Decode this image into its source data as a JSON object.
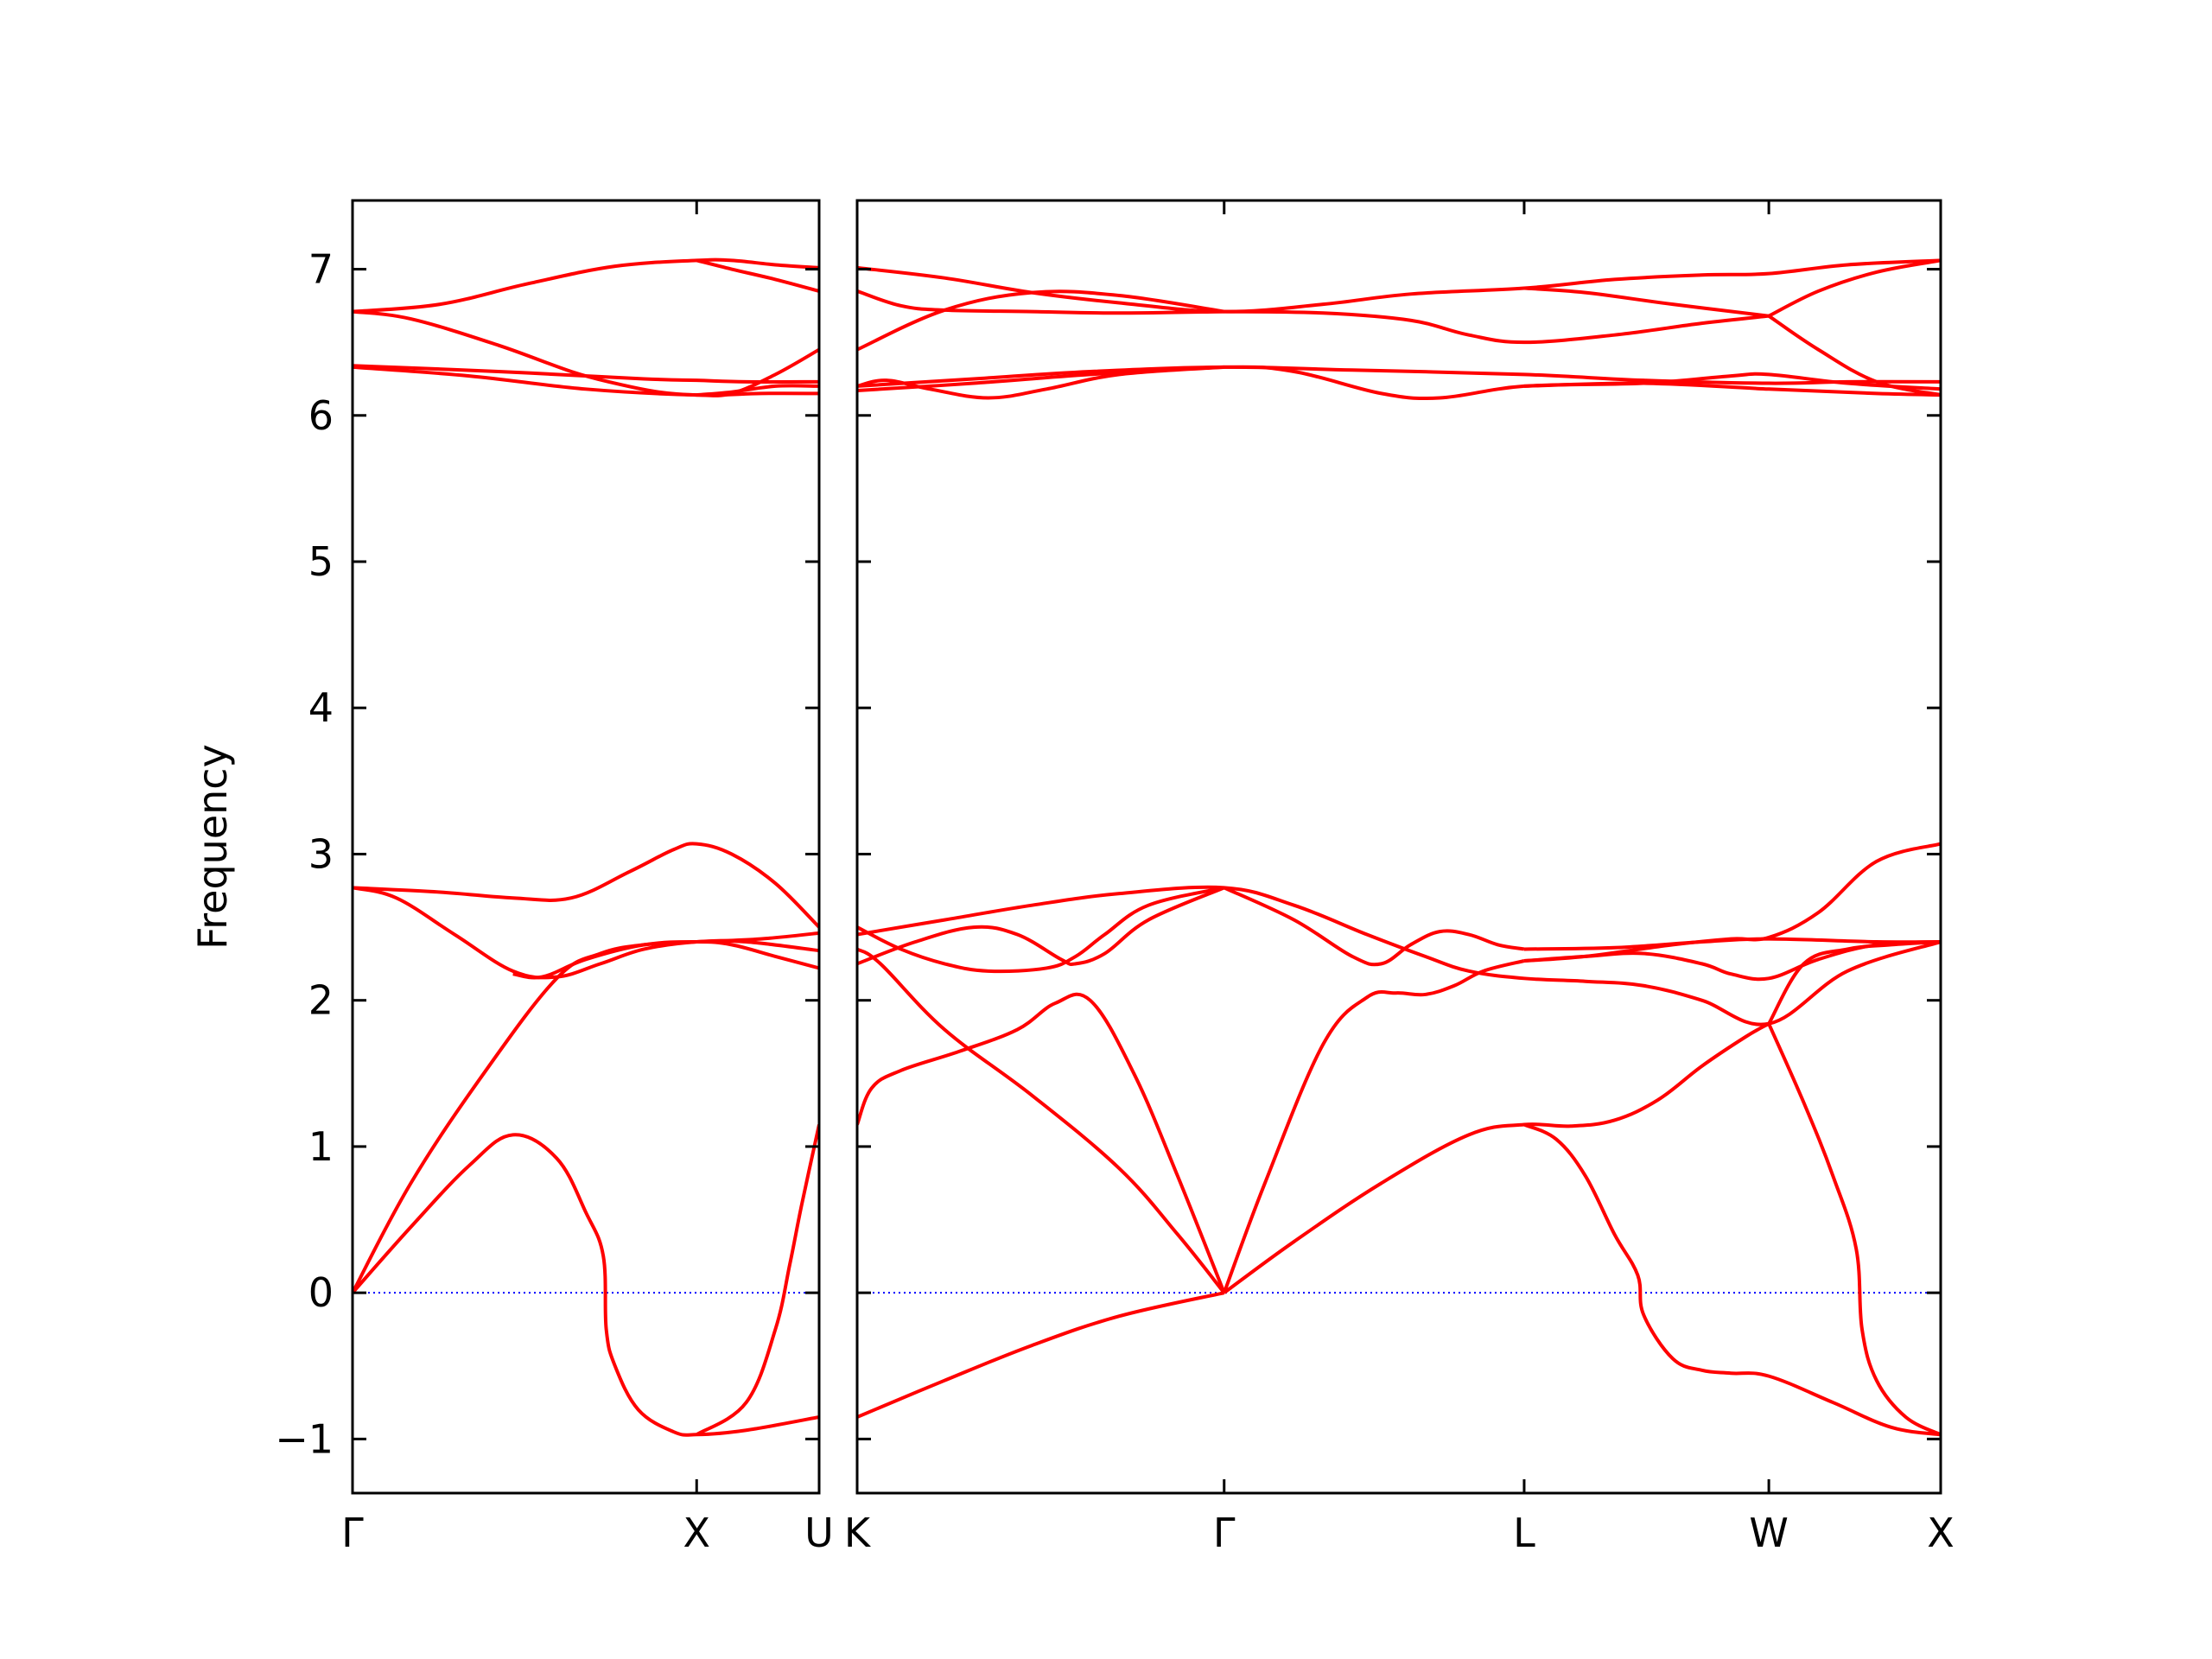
{
  "chart_data": {
    "type": "line",
    "ylabel": "Frequency",
    "ylim": [
      -1.37,
      7.47
    ],
    "yticks": [
      -1,
      0,
      1,
      2,
      3,
      4,
      5,
      6,
      7
    ],
    "ytick_labels": [
      "−1",
      "0",
      "1",
      "2",
      "3",
      "4",
      "5",
      "6",
      "7"
    ],
    "line_color": "#ff0000",
    "zero_line_color": "#0000ff",
    "panels": [
      {
        "xlim": [
          0,
          1.6
        ],
        "ticks": [
          {
            "x": 0,
            "label": "Γ"
          },
          {
            "x": 1.18,
            "label": "X"
          },
          {
            "x": 1.6,
            "label": "U"
          }
        ],
        "series": [
          {
            "x": [
              0,
              0.2,
              0.4,
              0.55,
              0.7,
              0.8,
              0.86,
              0.87,
              0.9,
              0.98,
              1.1,
              1.18,
              1.35,
              1.6
            ],
            "y": [
              0,
              0.45,
              0.87,
              1.08,
              0.92,
              0.55,
              0.25,
              -0.25,
              -0.5,
              -0.8,
              -0.95,
              -0.97,
              -0.94,
              -0.85
            ]
          },
          {
            "x": [
              0,
              0.2,
              0.45,
              0.7,
              0.85,
              1.0,
              1.18,
              1.4,
              1.6
            ],
            "y": [
              0,
              0.75,
              1.5,
              2.15,
              2.32,
              2.38,
              2.4,
              2.42,
              2.46
            ]
          },
          {
            "x": [
              0,
              0.15,
              0.35,
              0.55,
              0.7,
              0.85,
              1.0,
              1.18,
              1.35,
              1.6
            ],
            "y": [
              2.77,
              2.7,
              2.45,
              2.2,
              2.16,
              2.25,
              2.35,
              2.4,
              2.4,
              2.34
            ]
          },
          {
            "x": [
              0,
              0.3,
              0.55,
              0.75,
              0.95,
              1.1,
              1.18,
              1.3,
              1.45,
              1.6
            ],
            "y": [
              2.77,
              2.74,
              2.7,
              2.7,
              2.88,
              3.03,
              3.07,
              3.0,
              2.8,
              2.5
            ]
          },
          {
            "x": [
              1.18,
              1.35,
              1.45,
              1.5,
              1.54,
              1.6
            ],
            "y": [
              -0.97,
              -0.75,
              -0.25,
              0.2,
              0.6,
              1.15
            ]
          },
          {
            "x": [
              0.55,
              0.65,
              0.8,
              1.0,
              1.18,
              1.3,
              1.45,
              1.6
            ],
            "y": [
              2.18,
              2.16,
              2.28,
              2.38,
              2.4,
              2.38,
              2.3,
              2.22
            ]
          },
          {
            "x": [
              0,
              0.3,
              0.6,
              0.9,
              1.18,
              1.3,
              1.45,
              1.6
            ],
            "y": [
              6.71,
              6.76,
              6.9,
              7.02,
              7.06,
              7.06,
              7.03,
              7.01
            ]
          },
          {
            "x": [
              0,
              0.2,
              0.5,
              0.75,
              0.9,
              1.05,
              1.18,
              1.3,
              1.45,
              1.6
            ],
            "y": [
              6.71,
              6.66,
              6.48,
              6.3,
              6.22,
              6.16,
              6.14,
              6.15,
              6.28,
              6.45
            ]
          },
          {
            "x": [
              0,
              0.5,
              1.0,
              1.18,
              1.35,
              1.6
            ],
            "y": [
              6.34,
              6.3,
              6.25,
              6.24,
              6.23,
              6.23
            ]
          },
          {
            "x": [
              0,
              0.4,
              0.8,
              1.18,
              1.4,
              1.6
            ],
            "y": [
              6.33,
              6.27,
              6.18,
              6.14,
              6.15,
              6.15
            ]
          },
          {
            "x": [
              1.18,
              1.3,
              1.45,
              1.6
            ],
            "y": [
              7.06,
              7.0,
              6.93,
              6.85
            ]
          },
          {
            "x": [
              1.18,
              1.3,
              1.45,
              1.6
            ],
            "y": [
              6.14,
              6.16,
              6.2,
              6.2
            ]
          }
        ]
      },
      {
        "xlim": [
          0,
          3.72
        ],
        "ticks": [
          {
            "x": 0,
            "label": "K"
          },
          {
            "x": 1.26,
            "label": "Γ"
          },
          {
            "x": 2.29,
            "label": "L"
          },
          {
            "x": 3.13,
            "label": "W"
          },
          {
            "x": 3.72,
            "label": "X"
          }
        ],
        "series": [
          {
            "x": [
              0,
              0.3,
              0.6,
              0.9,
              1.26
            ],
            "y": [
              -0.85,
              -0.6,
              -0.36,
              -0.16,
              0
            ]
          },
          {
            "x": [
              1.26,
              1.5,
              1.8,
              2.1,
              2.29,
              2.45,
              2.6,
              2.75,
              2.9,
              3.05,
              3.13
            ],
            "y": [
              0,
              0.35,
              0.75,
              1.08,
              1.15,
              1.14,
              1.18,
              1.32,
              1.55,
              1.75,
              1.84
            ]
          },
          {
            "x": [
              1.26,
              1.1,
              0.9,
              0.6,
              0.3,
              0.08,
              0
            ],
            "y": [
              0,
              0.4,
              0.85,
              1.35,
              1.8,
              2.25,
              2.35
            ]
          },
          {
            "x": [
              1.26,
              1.1,
              0.95,
              0.8,
              0.68,
              0.55,
              0.35,
              0.15,
              0.05,
              0
            ],
            "y": [
              0,
              0.8,
              1.5,
              2.0,
              1.98,
              1.8,
              1.65,
              1.52,
              1.4,
              1.15
            ]
          },
          {
            "x": [
              1.26,
              1.4,
              1.6,
              1.75,
              1.85,
              1.95,
              2.05,
              2.15,
              2.29
            ],
            "y": [
              0,
              0.75,
              1.7,
              2.02,
              2.05,
              2.04,
              2.1,
              2.2,
              2.27
            ]
          },
          {
            "x": [
              2.29,
              2.4,
              2.5,
              2.6,
              2.68,
              2.7,
              2.8,
              2.9,
              3.0,
              3.13,
              3.35,
              3.55,
              3.72
            ],
            "y": [
              1.15,
              1.05,
              0.8,
              0.4,
              0.12,
              -0.15,
              -0.45,
              -0.53,
              -0.55,
              -0.57,
              -0.75,
              -0.92,
              -0.97
            ]
          },
          {
            "x": [
              3.13,
              3.25,
              3.35,
              3.43,
              3.45,
              3.5,
              3.6,
              3.72
            ],
            "y": [
              1.84,
              1.3,
              0.8,
              0.3,
              -0.25,
              -0.6,
              -0.85,
              -0.97
            ]
          },
          {
            "x": [
              3.13,
              3.25,
              3.4,
              3.55,
              3.72
            ],
            "y": [
              1.84,
              2.25,
              2.35,
              2.38,
              2.4
            ]
          },
          {
            "x": [
              0,
              0.3,
              0.6,
              0.9,
              1.26,
              1.5,
              1.75,
              1.95,
              2.1,
              2.29,
              2.5,
              2.7,
              2.9,
              3.13,
              3.4,
              3.72
            ],
            "y": [
              2.45,
              2.55,
              2.65,
              2.73,
              2.77,
              2.65,
              2.45,
              2.3,
              2.2,
              2.15,
              2.13,
              2.1,
              2.0,
              1.84,
              2.2,
              2.4
            ]
          },
          {
            "x": [
              0,
              0.15,
              0.3,
              0.45,
              0.65,
              0.75,
              0.85,
              1.0,
              1.26
            ],
            "y": [
              2.5,
              2.35,
              2.25,
              2.2,
              2.22,
              2.3,
              2.45,
              2.65,
              2.77
            ]
          },
          {
            "x": [
              0,
              0.2,
              0.4,
              0.55,
              0.7,
              0.75,
              0.85,
              1.0,
              1.26
            ],
            "y": [
              2.25,
              2.4,
              2.5,
              2.45,
              2.28,
              2.25,
              2.32,
              2.55,
              2.77
            ]
          },
          {
            "x": [
              1.26,
              1.5,
              1.7,
              1.8,
              1.9,
              2.0,
              2.1,
              2.2,
              2.29
            ],
            "y": [
              2.77,
              2.55,
              2.3,
              2.25,
              2.38,
              2.47,
              2.45,
              2.38,
              2.35
            ]
          },
          {
            "x": [
              2.29,
              2.6,
              2.9,
              3.13,
              3.5,
              3.72
            ],
            "y": [
              2.35,
              2.36,
              2.4,
              2.42,
              2.4,
              2.4
            ]
          },
          {
            "x": [
              2.29,
              2.5,
              2.8,
              3.0,
              3.13,
              3.3,
              3.5,
              3.72
            ],
            "y": [
              2.27,
              2.3,
              2.38,
              2.42,
              2.43,
              2.6,
              2.95,
              3.07
            ]
          },
          {
            "x": [
              2.29,
              2.5,
              2.7,
              2.9,
              3.0,
              3.13,
              3.3,
              3.5,
              3.72
            ],
            "y": [
              2.27,
              2.3,
              2.32,
              2.25,
              2.18,
              2.15,
              2.28,
              2.38,
              2.4
            ]
          },
          {
            "x": [
              0,
              0.3,
              0.6,
              0.9,
              1.26,
              1.6,
              1.9,
              2.29,
              2.6,
              2.9,
              3.13,
              3.4,
              3.72
            ],
            "y": [
              7.01,
              6.94,
              6.84,
              6.77,
              6.71,
              6.76,
              6.83,
              6.87,
              6.93,
              6.96,
              6.97,
              7.03,
              7.06
            ]
          },
          {
            "x": [
              0,
              0.3,
              0.6,
              0.9,
              1.26
            ],
            "y": [
              6.45,
              6.72,
              6.84,
              6.82,
              6.71
            ]
          },
          {
            "x": [
              0,
              0.15,
              0.3,
              0.6,
              0.9,
              1.26
            ],
            "y": [
              6.85,
              6.75,
              6.72,
              6.71,
              6.7,
              6.71
            ]
          },
          {
            "x": [
              1.26,
              1.6,
              1.9,
              2.1,
              2.29,
              2.6,
              2.9,
              3.13
            ],
            "y": [
              6.71,
              6.7,
              6.65,
              6.55,
              6.5,
              6.55,
              6.63,
              6.68
            ]
          },
          {
            "x": [
              2.29,
              2.5,
              2.8,
              3.13
            ],
            "y": [
              6.87,
              6.84,
              6.76,
              6.68
            ]
          },
          {
            "x": [
              3.13,
              3.3,
              3.5,
              3.72
            ],
            "y": [
              6.68,
              6.85,
              6.98,
              7.06
            ]
          },
          {
            "x": [
              3.13,
              3.3,
              3.5,
              3.72
            ],
            "y": [
              6.68,
              6.45,
              6.23,
              6.14
            ]
          },
          {
            "x": [
              0,
              0.4,
              0.8,
              1.26,
              1.7,
              2.29,
              2.7,
              3.13,
              3.4,
              3.72
            ],
            "y": [
              6.2,
              6.25,
              6.3,
              6.33,
              6.31,
              6.28,
              6.24,
              6.22,
              6.23,
              6.23
            ]
          },
          {
            "x": [
              0,
              0.4,
              0.8,
              1.26,
              1.5,
              1.8,
              2.0,
              2.29,
              2.7,
              3.0,
              3.13,
              3.4,
              3.72
            ],
            "y": [
              6.17,
              6.22,
              6.28,
              6.33,
              6.3,
              6.15,
              6.12,
              6.2,
              6.22,
              6.27,
              6.28,
              6.22,
              6.18
            ]
          },
          {
            "x": [
              0,
              0.1,
              0.25,
              0.45,
              0.65,
              0.9,
              1.26
            ],
            "y": [
              6.2,
              6.24,
              6.18,
              6.12,
              6.18,
              6.28,
              6.33
            ]
          },
          {
            "x": [
              2.29,
              2.7,
              3.13,
              3.5,
              3.72
            ],
            "y": [
              6.2,
              6.22,
              6.18,
              6.15,
              6.14
            ]
          }
        ]
      }
    ]
  }
}
